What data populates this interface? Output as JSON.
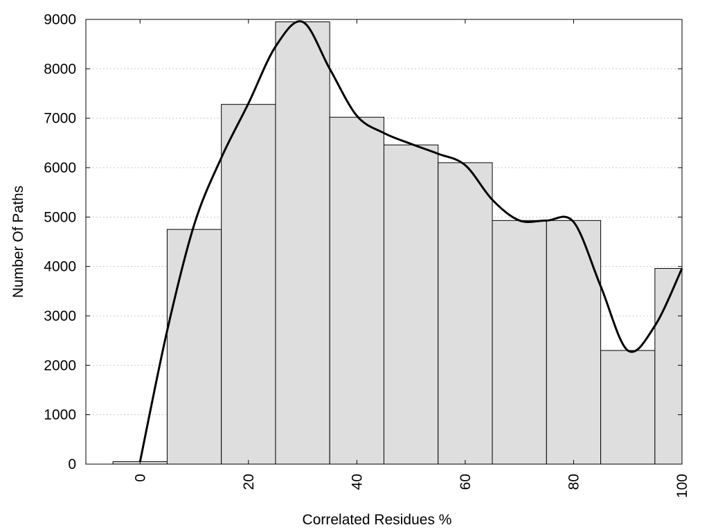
{
  "chart_data": {
    "type": "bar",
    "title": "",
    "xlabel": "Correlated Residues %",
    "ylabel": "Number Of Paths",
    "xlim": [
      -10,
      100
    ],
    "ylim": [
      0,
      9000
    ],
    "grid": {
      "horizontal": true,
      "vertical": false,
      "style": "dotted"
    },
    "x_ticks": [
      0,
      20,
      40,
      60,
      80,
      100
    ],
    "y_ticks": [
      0,
      1000,
      2000,
      3000,
      4000,
      5000,
      6000,
      7000,
      8000,
      9000
    ],
    "bin_width": 10,
    "bars": [
      {
        "x": 0,
        "value": 50
      },
      {
        "x": 10,
        "value": 4750
      },
      {
        "x": 20,
        "value": 7280
      },
      {
        "x": 30,
        "value": 8950
      },
      {
        "x": 40,
        "value": 7020
      },
      {
        "x": 50,
        "value": 6460
      },
      {
        "x": 60,
        "value": 6100
      },
      {
        "x": 70,
        "value": 4930
      },
      {
        "x": 80,
        "value": 4930
      },
      {
        "x": 90,
        "value": 2300
      },
      {
        "x": 100,
        "value": 3960
      }
    ],
    "curve": {
      "x": [
        0,
        5,
        10,
        15,
        20,
        25,
        30,
        35,
        40,
        45,
        50,
        55,
        60,
        65,
        70,
        75,
        80,
        85,
        90,
        95,
        100
      ],
      "y": [
        50,
        2700,
        4850,
        6200,
        7300,
        8450,
        8950,
        8000,
        7050,
        6700,
        6480,
        6280,
        6050,
        5350,
        4930,
        4930,
        4900,
        3600,
        2300,
        2800,
        3960
      ]
    },
    "colors": {
      "bar_fill": "#dedede",
      "bar_stroke": "#000000",
      "curve": "#000000",
      "grid": "#c8c8c8"
    }
  }
}
